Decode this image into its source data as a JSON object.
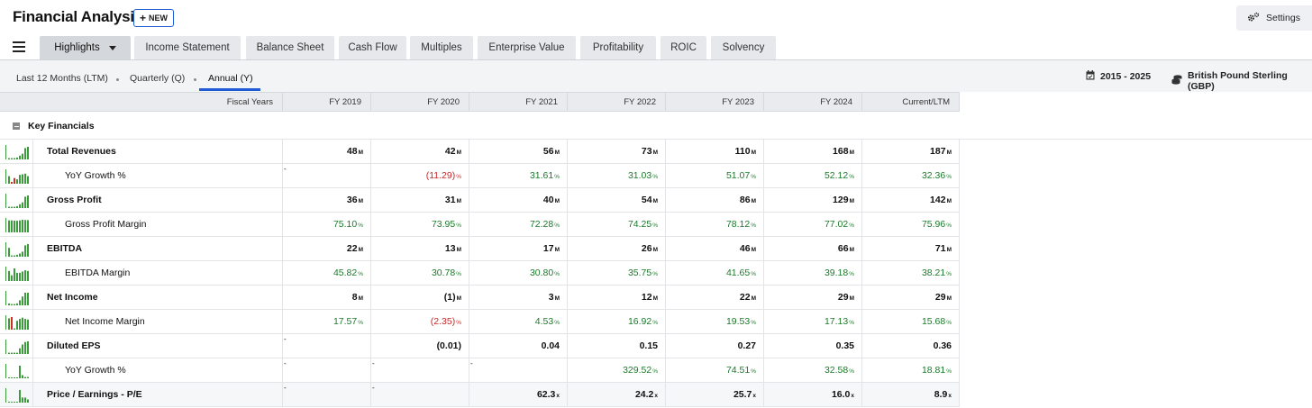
{
  "header": {
    "title": "Financial Analysis",
    "new_label": "NEW",
    "settings_label": "Settings"
  },
  "tabs": [
    {
      "label": "Highlights",
      "active": true
    },
    {
      "label": "Income Statement"
    },
    {
      "label": "Balance Sheet"
    },
    {
      "label": "Cash Flow"
    },
    {
      "label": "Multiples"
    },
    {
      "label": "Enterprise Value"
    },
    {
      "label": "Profitability"
    },
    {
      "label": "ROIC"
    },
    {
      "label": "Solvency"
    }
  ],
  "periods": [
    {
      "label": "Last 12 Months (LTM)"
    },
    {
      "label": "Quarterly (Q)"
    },
    {
      "label": "Annual (Y)",
      "active": true
    }
  ],
  "range": {
    "years": "2015 - 2025",
    "currency": "British Pound Sterling (GBP)"
  },
  "table": {
    "header_label": "Fiscal Years",
    "columns": [
      "FY 2019",
      "FY 2020",
      "FY 2021",
      "FY 2022",
      "FY 2023",
      "FY 2024",
      "Current/LTM"
    ],
    "section": "Key Financials",
    "rows": [
      {
        "label": "Total Revenues",
        "bold": true,
        "unit": "M",
        "values": [
          "48",
          "42",
          "56",
          "73",
          "110",
          "168",
          "187"
        ],
        "spark": [
          0.1,
          0.1,
          0.1,
          0.15,
          0.3,
          0.45,
          0.9,
          1.0
        ],
        "spark_neg": []
      },
      {
        "label": "YoY Growth %",
        "bold": false,
        "unit": "%",
        "values": [
          "-",
          "(11.29)",
          "31.61",
          "31.03",
          "51.07",
          "52.12",
          "32.36"
        ],
        "spark": [
          0.6,
          0.15,
          0.45,
          0.35,
          0.7,
          0.75,
          0.8,
          0.6
        ],
        "spark_neg": [
          1,
          2
        ]
      },
      {
        "label": "Gross Profit",
        "bold": true,
        "unit": "M",
        "values": [
          "36",
          "31",
          "40",
          "54",
          "86",
          "129",
          "142"
        ],
        "spark": [
          0.1,
          0.1,
          0.1,
          0.15,
          0.3,
          0.45,
          0.9,
          1.0
        ],
        "spark_neg": []
      },
      {
        "label": "Gross Profit Margin",
        "bold": false,
        "unit": "%",
        "values": [
          "75.10",
          "73.95",
          "72.28",
          "74.25",
          "78.12",
          "77.02",
          "75.96"
        ],
        "spark": [
          0.95,
          0.95,
          0.93,
          0.92,
          0.95,
          1.0,
          0.98,
          0.97
        ],
        "spark_neg": []
      },
      {
        "label": "EBITDA",
        "bold": true,
        "unit": "M",
        "values": [
          "22",
          "13",
          "17",
          "26",
          "46",
          "66",
          "71"
        ],
        "spark": [
          0.7,
          0.1,
          0.1,
          0.15,
          0.25,
          0.4,
          0.9,
          1.0
        ],
        "spark_neg": []
      },
      {
        "label": "EBITDA Margin",
        "bold": false,
        "unit": "%",
        "values": [
          "45.82",
          "30.78",
          "30.80",
          "35.75",
          "41.65",
          "39.18",
          "38.21"
        ],
        "spark": [
          0.8,
          0.45,
          1.0,
          0.65,
          0.65,
          0.75,
          0.85,
          0.8
        ],
        "spark_neg": []
      },
      {
        "label": "Net Income",
        "bold": true,
        "unit": "M",
        "values": [
          "8",
          "(1)",
          "3",
          "12",
          "22",
          "29",
          "29"
        ],
        "spark": [
          0.15,
          0.1,
          0.1,
          0.15,
          0.4,
          0.7,
          1.0,
          1.0
        ],
        "spark_neg": []
      },
      {
        "label": "Net Income Margin",
        "bold": false,
        "unit": "%",
        "values": [
          "17.57",
          "(2.35)",
          "4.53",
          "16.92",
          "19.53",
          "17.13",
          "15.68"
        ],
        "spark": [
          0.9,
          1.0,
          0.1,
          0.7,
          0.85,
          0.95,
          0.85,
          0.8
        ],
        "spark_neg": [
          1
        ]
      },
      {
        "label": "Diluted EPS",
        "bold": true,
        "unit": "",
        "values": [
          "-",
          "(0.01)",
          "0.04",
          "0.15",
          "0.27",
          "0.35",
          "0.36"
        ],
        "spark": [
          0.1,
          0.1,
          0.1,
          0.1,
          0.45,
          0.75,
          0.95,
          1.0
        ],
        "spark_neg": []
      },
      {
        "label": "YoY Growth %",
        "bold": false,
        "unit": "%",
        "values": [
          "-",
          "-",
          "-",
          "329.52",
          "74.51",
          "32.58",
          "18.81"
        ],
        "spark": [
          0.05,
          0.05,
          0.05,
          0.05,
          1.0,
          0.25,
          0.1,
          0.1
        ],
        "spark_neg": []
      },
      {
        "label": "Price / Earnings - P/E",
        "bold": true,
        "unit": "x",
        "values": [
          "-",
          "-",
          "62.3",
          "24.2",
          "25.7",
          "16.0",
          "8.9"
        ],
        "spark": [
          0.05,
          0.05,
          0.05,
          0.05,
          1.0,
          0.4,
          0.4,
          0.25
        ],
        "spark_neg": []
      }
    ]
  },
  "colors": {
    "accent": "#1f5bd6",
    "positive": "#1b7a2a",
    "negative": "#c62828",
    "spark_bar": "#3d9a3d",
    "spark_neg": "#d12b2b"
  }
}
